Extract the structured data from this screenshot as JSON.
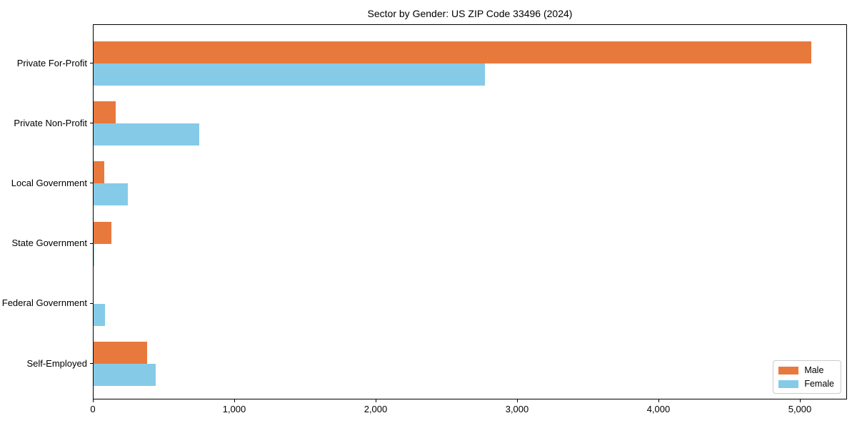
{
  "title": "Sector by Gender: US ZIP Code 33496 (2024)",
  "colors": {
    "male": "#e8793d",
    "female": "#85cbe8",
    "spine": "#000000",
    "legend_border": "#cccccc",
    "background": "#ffffff"
  },
  "legend": {
    "items": [
      {
        "label": "Male",
        "color": "#e8793d"
      },
      {
        "label": "Female",
        "color": "#85cbe8"
      }
    ]
  },
  "chart_data": {
    "type": "bar",
    "orientation": "horizontal",
    "title": "Sector by Gender: US ZIP Code 33496 (2024)",
    "categories": [
      "Private For-Profit",
      "Private Non-Profit",
      "Local Government",
      "State Government",
      "Federal Government",
      "Self-Employed"
    ],
    "series": [
      {
        "name": "Male",
        "color": "#e8793d",
        "values": [
          5075,
          155,
          75,
          125,
          0,
          380
        ]
      },
      {
        "name": "Female",
        "color": "#85cbe8",
        "values": [
          2765,
          745,
          240,
          5,
          80,
          440
        ]
      }
    ],
    "xlabel": "",
    "ylabel": "",
    "x_ticks": [
      "0",
      "1,000",
      "2,000",
      "3,000",
      "4,000",
      "5,000"
    ],
    "x_tick_values": [
      0,
      1000,
      2000,
      3000,
      4000,
      5000
    ],
    "xlim": [
      0,
      5333
    ],
    "grid": false,
    "legend_position": "lower right"
  }
}
